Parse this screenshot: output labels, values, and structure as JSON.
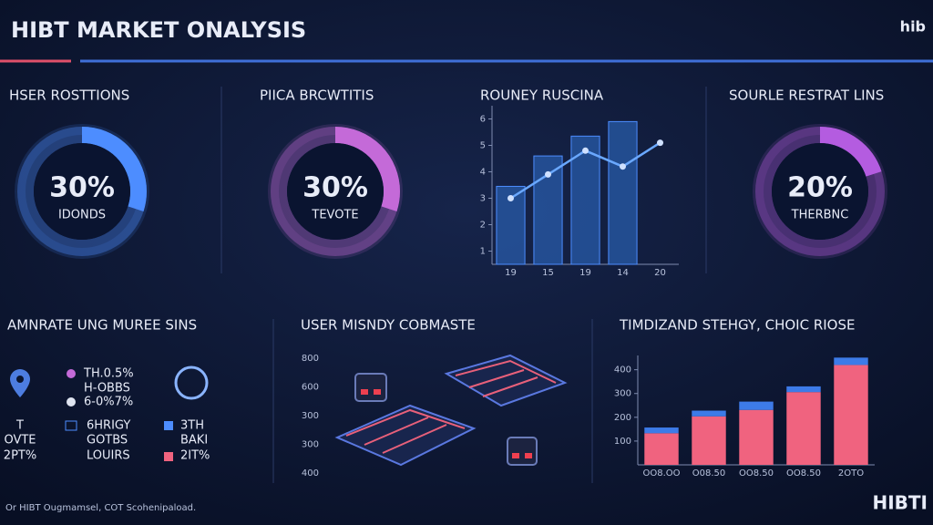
{
  "header": {
    "title": "HIBT MARKET ONALYSIS",
    "logo": "hib"
  },
  "chart_data": [
    {
      "type": "donut",
      "title": "HSER ROSTTIONS",
      "values": [
        30
      ],
      "value_labels": [
        "30%"
      ],
      "label": "IDONDS",
      "color": "#4d8dff"
    },
    {
      "type": "donut",
      "title": "PIICA BRCWTITIS",
      "values": [
        30
      ],
      "value_labels": [
        "30%"
      ],
      "label": "TEVOTE",
      "color": "#c46ad8"
    },
    {
      "type": "combo",
      "title": "ROUNEY RUSCINA",
      "categories": [
        "19",
        "15",
        "19",
        "14",
        "20"
      ],
      "series": [
        {
          "type": "bar",
          "color": "#2a5fb0",
          "values": [
            3.45,
            4.6,
            5.35,
            5.9,
            null
          ]
        },
        {
          "type": "line",
          "color": "#6aa8ff",
          "values": [
            3.0,
            3.9,
            4.8,
            4.2,
            5.1
          ]
        }
      ],
      "ylim": [
        0.5,
        6.5
      ],
      "yticks": [
        1,
        2,
        3,
        4,
        5,
        6
      ]
    },
    {
      "type": "donut",
      "title": "SOURLE RESTRAT LINS",
      "values": [
        20
      ],
      "value_labels": [
        "20%"
      ],
      "label": "THERBNC",
      "color": "#b45ce0"
    },
    {
      "type": "stacked_bar",
      "title": "TIMDIZAND STEHGY, CHOIC RIOSE",
      "categories": [
        "OO8.OO",
        "O08.50",
        "OO8.50",
        "OO8.50",
        "2OTO"
      ],
      "series": [
        {
          "color": "#f0637f",
          "values": [
            133,
            204,
            231,
            306,
            420
          ]
        },
        {
          "color": "#3d7be8",
          "values": [
            24,
            24,
            35,
            24,
            31
          ]
        }
      ],
      "ylim": [
        0,
        460
      ],
      "yticks": [
        100,
        200,
        300,
        400
      ]
    }
  ],
  "legend_panel": {
    "title": "AMNRATE UNG MUREE SINS",
    "items": [
      "TH.0.5%",
      "H-OBBS",
      "6-0%7%",
      "T",
      "OVTE",
      "2PT%",
      "6HRIGY",
      "GOTBS",
      "LOUIRS",
      "3TH",
      "BAKI",
      "2IT%"
    ]
  },
  "diagram_panel": {
    "title": "USER MISNDY COBMASTE",
    "axis_labels": [
      "800",
      "600",
      "300",
      "300",
      "400"
    ]
  },
  "footer": {
    "text": "Or HIBT Ougmamsel, COT Scohenipaload.",
    "logo": "HIBTI"
  }
}
